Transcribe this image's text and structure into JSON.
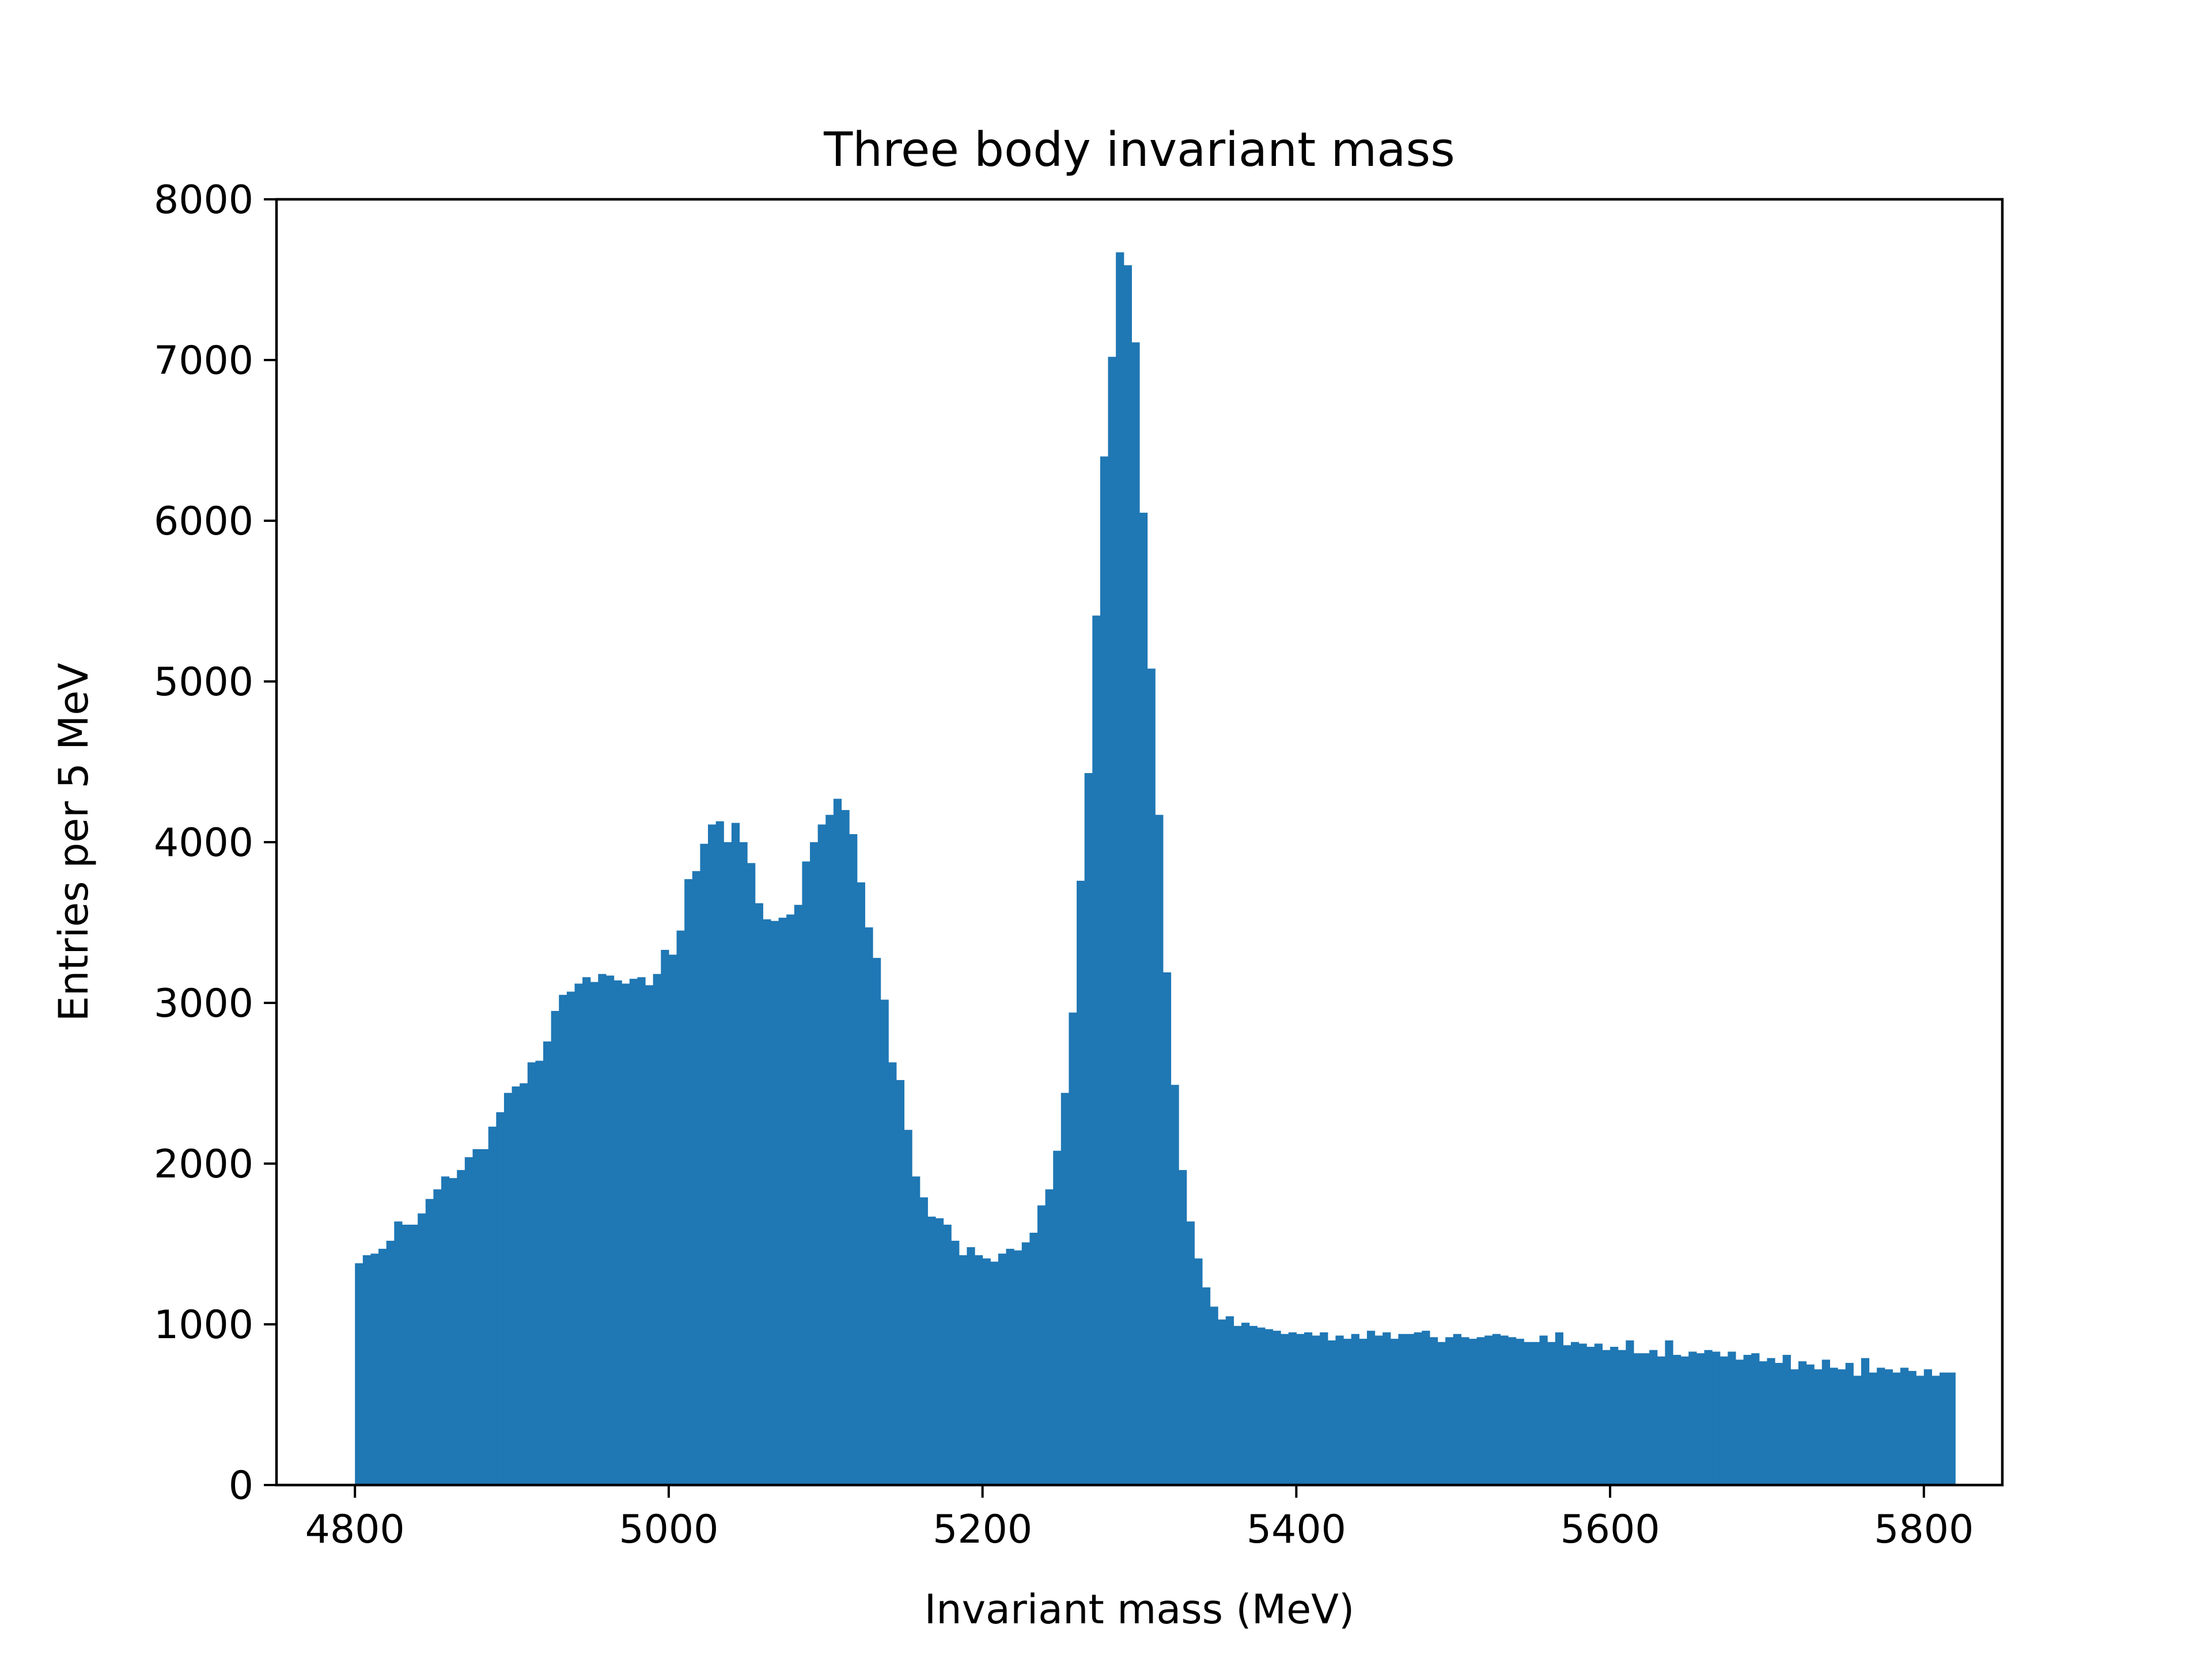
{
  "chart_data": {
    "type": "bar",
    "title": "Three body invariant mass",
    "xlabel": "Invariant mass (MeV)",
    "ylabel": "Entries per 5 MeV",
    "xlim": [
      4750,
      5850
    ],
    "ylim": [
      0,
      8000
    ],
    "bin_width": 5,
    "x_ticks": [
      4800,
      5000,
      5200,
      5400,
      5600,
      5800
    ],
    "y_ticks": [
      0,
      1000,
      2000,
      3000,
      4000,
      5000,
      6000,
      7000,
      8000
    ],
    "grid": false,
    "color": "#1f77b4",
    "bin_edges_start": 4800,
    "values": [
      1380,
      1430,
      1440,
      1470,
      1520,
      1640,
      1620,
      1620,
      1690,
      1780,
      1840,
      1920,
      1910,
      1960,
      2040,
      2090,
      2090,
      2230,
      2320,
      2440,
      2480,
      2500,
      2630,
      2640,
      2760,
      2950,
      3050,
      3070,
      3120,
      3160,
      3130,
      3180,
      3170,
      3140,
      3120,
      3150,
      3160,
      3110,
      3180,
      3330,
      3300,
      3450,
      3770,
      3820,
      3990,
      4110,
      4130,
      4000,
      4120,
      4000,
      3870,
      3620,
      3520,
      3510,
      3530,
      3550,
      3610,
      3880,
      4000,
      4110,
      4170,
      4270,
      4200,
      4050,
      3750,
      3470,
      3280,
      3020,
      2630,
      2520,
      2210,
      1920,
      1790,
      1670,
      1660,
      1620,
      1520,
      1430,
      1480,
      1430,
      1410,
      1390,
      1440,
      1470,
      1460,
      1510,
      1570,
      1740,
      1840,
      2080,
      2440,
      2940,
      3760,
      4430,
      5410,
      6400,
      7020,
      7670,
      7590,
      7110,
      6050,
      5080,
      4170,
      3190,
      2490,
      1960,
      1640,
      1410,
      1230,
      1110,
      1030,
      1050,
      990,
      1010,
      990,
      980,
      970,
      960,
      940,
      950,
      940,
      950,
      930,
      950,
      900,
      930,
      910,
      940,
      910,
      960,
      930,
      950,
      910,
      940,
      940,
      950,
      960,
      920,
      890,
      920,
      940,
      920,
      910,
      920,
      930,
      940,
      930,
      920,
      910,
      890,
      890,
      930,
      890,
      950,
      870,
      890,
      880,
      860,
      880,
      840,
      860,
      840,
      900,
      820,
      820,
      840,
      800,
      900,
      810,
      800,
      830,
      820,
      840,
      830,
      800,
      830,
      780,
      810,
      820,
      770,
      790,
      760,
      810,
      720,
      770,
      750,
      720,
      780,
      730,
      720,
      760,
      680,
      790,
      700,
      730,
      720,
      700,
      730,
      710,
      680,
      720,
      680,
      700,
      700
    ]
  }
}
